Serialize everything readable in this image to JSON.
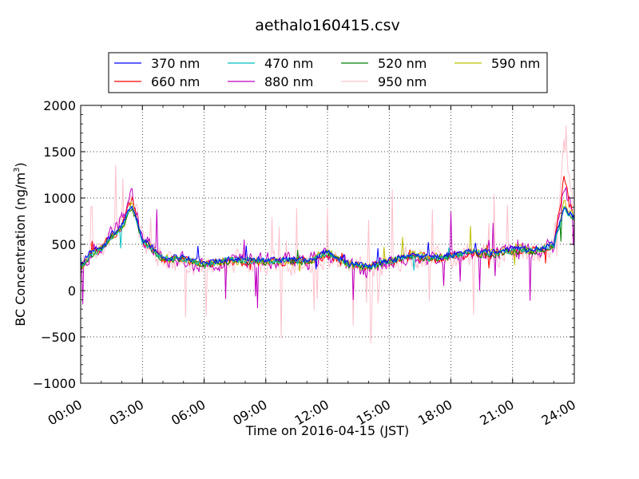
{
  "chart_data": {
    "type": "line",
    "title": "aethalo160415.csv",
    "xlabel": "Time on 2016-04-15 (JST)",
    "ylabel_main": "BC Concentration (ng/m",
    "ylabel_sup": "3",
    "ylabel_close": ")",
    "x_unit": "hours since 2016-04-15 00:00 JST",
    "xlim": [
      0,
      24
    ],
    "ylim": [
      -1000,
      2000
    ],
    "x_ticks": [
      0,
      3,
      6,
      9,
      12,
      15,
      18,
      21,
      24
    ],
    "x_tick_labels": [
      "00:00",
      "03:00",
      "06:00",
      "09:00",
      "12:00",
      "15:00",
      "18:00",
      "21:00",
      "24:00"
    ],
    "y_ticks": [
      -1000,
      -500,
      0,
      500,
      1000,
      1500,
      2000
    ],
    "y_tick_labels": [
      "−1000",
      "−500",
      "0",
      "500",
      "1000",
      "1500",
      "2000"
    ],
    "grid": true,
    "legend_position": "top (above axes)",
    "series": [
      {
        "name": "370 nm",
        "color": "#0000ff",
        "amp": 0.35,
        "seed": 1,
        "values": [
          [
            0,
            260
          ],
          [
            0.5,
            420
          ],
          [
            1.0,
            460
          ],
          [
            1.5,
            600
          ],
          [
            2.0,
            700
          ],
          [
            2.5,
            950
          ],
          [
            3.0,
            560
          ],
          [
            4.0,
            360
          ],
          [
            5.0,
            360
          ],
          [
            6.0,
            300
          ],
          [
            7.0,
            330
          ],
          [
            8.0,
            340
          ],
          [
            9.0,
            330
          ],
          [
            10.0,
            330
          ],
          [
            11.0,
            330
          ],
          [
            12.0,
            430
          ],
          [
            13.0,
            300
          ],
          [
            14.0,
            260
          ],
          [
            15.0,
            330
          ],
          [
            16.0,
            390
          ],
          [
            17.0,
            370
          ],
          [
            18.0,
            380
          ],
          [
            19.0,
            430
          ],
          [
            20.0,
            410
          ],
          [
            21.0,
            450
          ],
          [
            22.0,
            440
          ],
          [
            23.0,
            500
          ],
          [
            23.5,
            900
          ],
          [
            24.0,
            800
          ]
        ]
      },
      {
        "name": "470 nm",
        "color": "#00bfbf",
        "amp": 0.35,
        "seed": 2,
        "values": [
          [
            0,
            250
          ],
          [
            0.5,
            400
          ],
          [
            1.0,
            450
          ],
          [
            1.5,
            580
          ],
          [
            2.0,
            680
          ],
          [
            2.5,
            930
          ],
          [
            3.0,
            540
          ],
          [
            4.0,
            350
          ],
          [
            5.0,
            340
          ],
          [
            6.0,
            290
          ],
          [
            7.0,
            320
          ],
          [
            8.0,
            330
          ],
          [
            9.0,
            320
          ],
          [
            10.0,
            320
          ],
          [
            11.0,
            320
          ],
          [
            12.0,
            410
          ],
          [
            13.0,
            290
          ],
          [
            14.0,
            250
          ],
          [
            15.0,
            320
          ],
          [
            16.0,
            380
          ],
          [
            17.0,
            360
          ],
          [
            18.0,
            370
          ],
          [
            19.0,
            420
          ],
          [
            20.0,
            400
          ],
          [
            21.0,
            440
          ],
          [
            22.0,
            430
          ],
          [
            23.0,
            490
          ],
          [
            23.5,
            880
          ],
          [
            24.0,
            780
          ]
        ]
      },
      {
        "name": "520 nm",
        "color": "#007f00",
        "amp": 0.4,
        "seed": 3,
        "values": [
          [
            0,
            240
          ],
          [
            0.5,
            390
          ],
          [
            1.0,
            440
          ],
          [
            1.5,
            560
          ],
          [
            2.0,
            660
          ],
          [
            2.5,
            920
          ],
          [
            3.0,
            530
          ],
          [
            4.0,
            340
          ],
          [
            5.0,
            330
          ],
          [
            6.0,
            280
          ],
          [
            7.0,
            310
          ],
          [
            8.0,
            320
          ],
          [
            9.0,
            310
          ],
          [
            10.0,
            310
          ],
          [
            11.0,
            310
          ],
          [
            12.0,
            400
          ],
          [
            13.0,
            280
          ],
          [
            14.0,
            240
          ],
          [
            15.0,
            310
          ],
          [
            16.0,
            370
          ],
          [
            17.0,
            350
          ],
          [
            18.0,
            360
          ],
          [
            19.0,
            410
          ],
          [
            20.0,
            390
          ],
          [
            21.0,
            430
          ],
          [
            22.0,
            420
          ],
          [
            23.0,
            480
          ],
          [
            23.5,
            900
          ],
          [
            24.0,
            770
          ]
        ]
      },
      {
        "name": "590 nm",
        "color": "#bfbf00",
        "amp": 0.5,
        "seed": 4,
        "values": [
          [
            0,
            250
          ],
          [
            0.5,
            400
          ],
          [
            1.0,
            450
          ],
          [
            1.5,
            580
          ],
          [
            2.0,
            690
          ],
          [
            2.5,
            950
          ],
          [
            3.0,
            560
          ],
          [
            4.0,
            350
          ],
          [
            5.0,
            340
          ],
          [
            6.0,
            290
          ],
          [
            7.0,
            320
          ],
          [
            8.0,
            330
          ],
          [
            9.0,
            320
          ],
          [
            10.0,
            320
          ],
          [
            11.0,
            320
          ],
          [
            12.0,
            410
          ],
          [
            13.0,
            290
          ],
          [
            14.0,
            250
          ],
          [
            15.0,
            320
          ],
          [
            16.0,
            380
          ],
          [
            17.0,
            360
          ],
          [
            18.0,
            370
          ],
          [
            19.0,
            420
          ],
          [
            20.0,
            400
          ],
          [
            21.0,
            450
          ],
          [
            22.0,
            430
          ],
          [
            23.0,
            490
          ],
          [
            23.5,
            950
          ],
          [
            24.0,
            790
          ]
        ]
      },
      {
        "name": "660 nm",
        "color": "#ff0000",
        "amp": 0.5,
        "seed": 5,
        "values": [
          [
            0,
            240
          ],
          [
            0.5,
            400
          ],
          [
            1.0,
            450
          ],
          [
            1.5,
            590
          ],
          [
            2.0,
            700
          ],
          [
            2.5,
            980
          ],
          [
            3.0,
            560
          ],
          [
            4.0,
            340
          ],
          [
            5.0,
            330
          ],
          [
            6.0,
            280
          ],
          [
            7.0,
            310
          ],
          [
            8.0,
            320
          ],
          [
            9.0,
            310
          ],
          [
            10.0,
            310
          ],
          [
            11.0,
            310
          ],
          [
            12.0,
            400
          ],
          [
            13.0,
            280
          ],
          [
            14.0,
            240
          ],
          [
            15.0,
            310
          ],
          [
            16.0,
            370
          ],
          [
            17.0,
            350
          ],
          [
            18.0,
            360
          ],
          [
            19.0,
            410
          ],
          [
            20.0,
            390
          ],
          [
            21.0,
            440
          ],
          [
            22.0,
            430
          ],
          [
            23.0,
            490
          ],
          [
            23.5,
            1200
          ],
          [
            24.0,
            800
          ]
        ]
      },
      {
        "name": "880 nm",
        "color": "#bf00bf",
        "amp": 0.9,
        "seed": 6,
        "values": [
          [
            0,
            240
          ],
          [
            0.5,
            410
          ],
          [
            1.0,
            460
          ],
          [
            1.5,
            620
          ],
          [
            2.0,
            760
          ],
          [
            2.5,
            1050
          ],
          [
            3.0,
            560
          ],
          [
            4.0,
            320
          ],
          [
            5.0,
            330
          ],
          [
            6.0,
            280
          ],
          [
            7.0,
            310
          ],
          [
            8.0,
            320
          ],
          [
            9.0,
            320
          ],
          [
            10.0,
            320
          ],
          [
            11.0,
            310
          ],
          [
            12.0,
            400
          ],
          [
            13.0,
            270
          ],
          [
            14.0,
            230
          ],
          [
            15.0,
            310
          ],
          [
            16.0,
            370
          ],
          [
            17.0,
            350
          ],
          [
            18.0,
            360
          ],
          [
            19.0,
            410
          ],
          [
            20.0,
            380
          ],
          [
            21.0,
            440
          ],
          [
            22.0,
            420
          ],
          [
            23.0,
            480
          ],
          [
            23.5,
            1100
          ],
          [
            24.0,
            820
          ]
        ]
      },
      {
        "name": "950 nm",
        "color": "#ffc0cb",
        "amp": 1.3,
        "seed": 7,
        "values": [
          [
            0,
            230
          ],
          [
            0.5,
            400
          ],
          [
            1.0,
            450
          ],
          [
            1.5,
            600
          ],
          [
            2.0,
            720
          ],
          [
            2.5,
            1000
          ],
          [
            3.0,
            550
          ],
          [
            4.0,
            310
          ],
          [
            5.0,
            310
          ],
          [
            6.0,
            270
          ],
          [
            7.0,
            300
          ],
          [
            8.0,
            310
          ],
          [
            9.0,
            300
          ],
          [
            10.0,
            300
          ],
          [
            11.0,
            300
          ],
          [
            12.0,
            390
          ],
          [
            13.0,
            260
          ],
          [
            14.0,
            220
          ],
          [
            15.0,
            300
          ],
          [
            16.0,
            360
          ],
          [
            17.0,
            340
          ],
          [
            18.0,
            350
          ],
          [
            19.0,
            400
          ],
          [
            20.0,
            370
          ],
          [
            21.0,
            430
          ],
          [
            22.0,
            410
          ],
          [
            23.0,
            470
          ],
          [
            23.5,
            1500
          ],
          [
            24.0,
            800
          ]
        ]
      }
    ]
  }
}
